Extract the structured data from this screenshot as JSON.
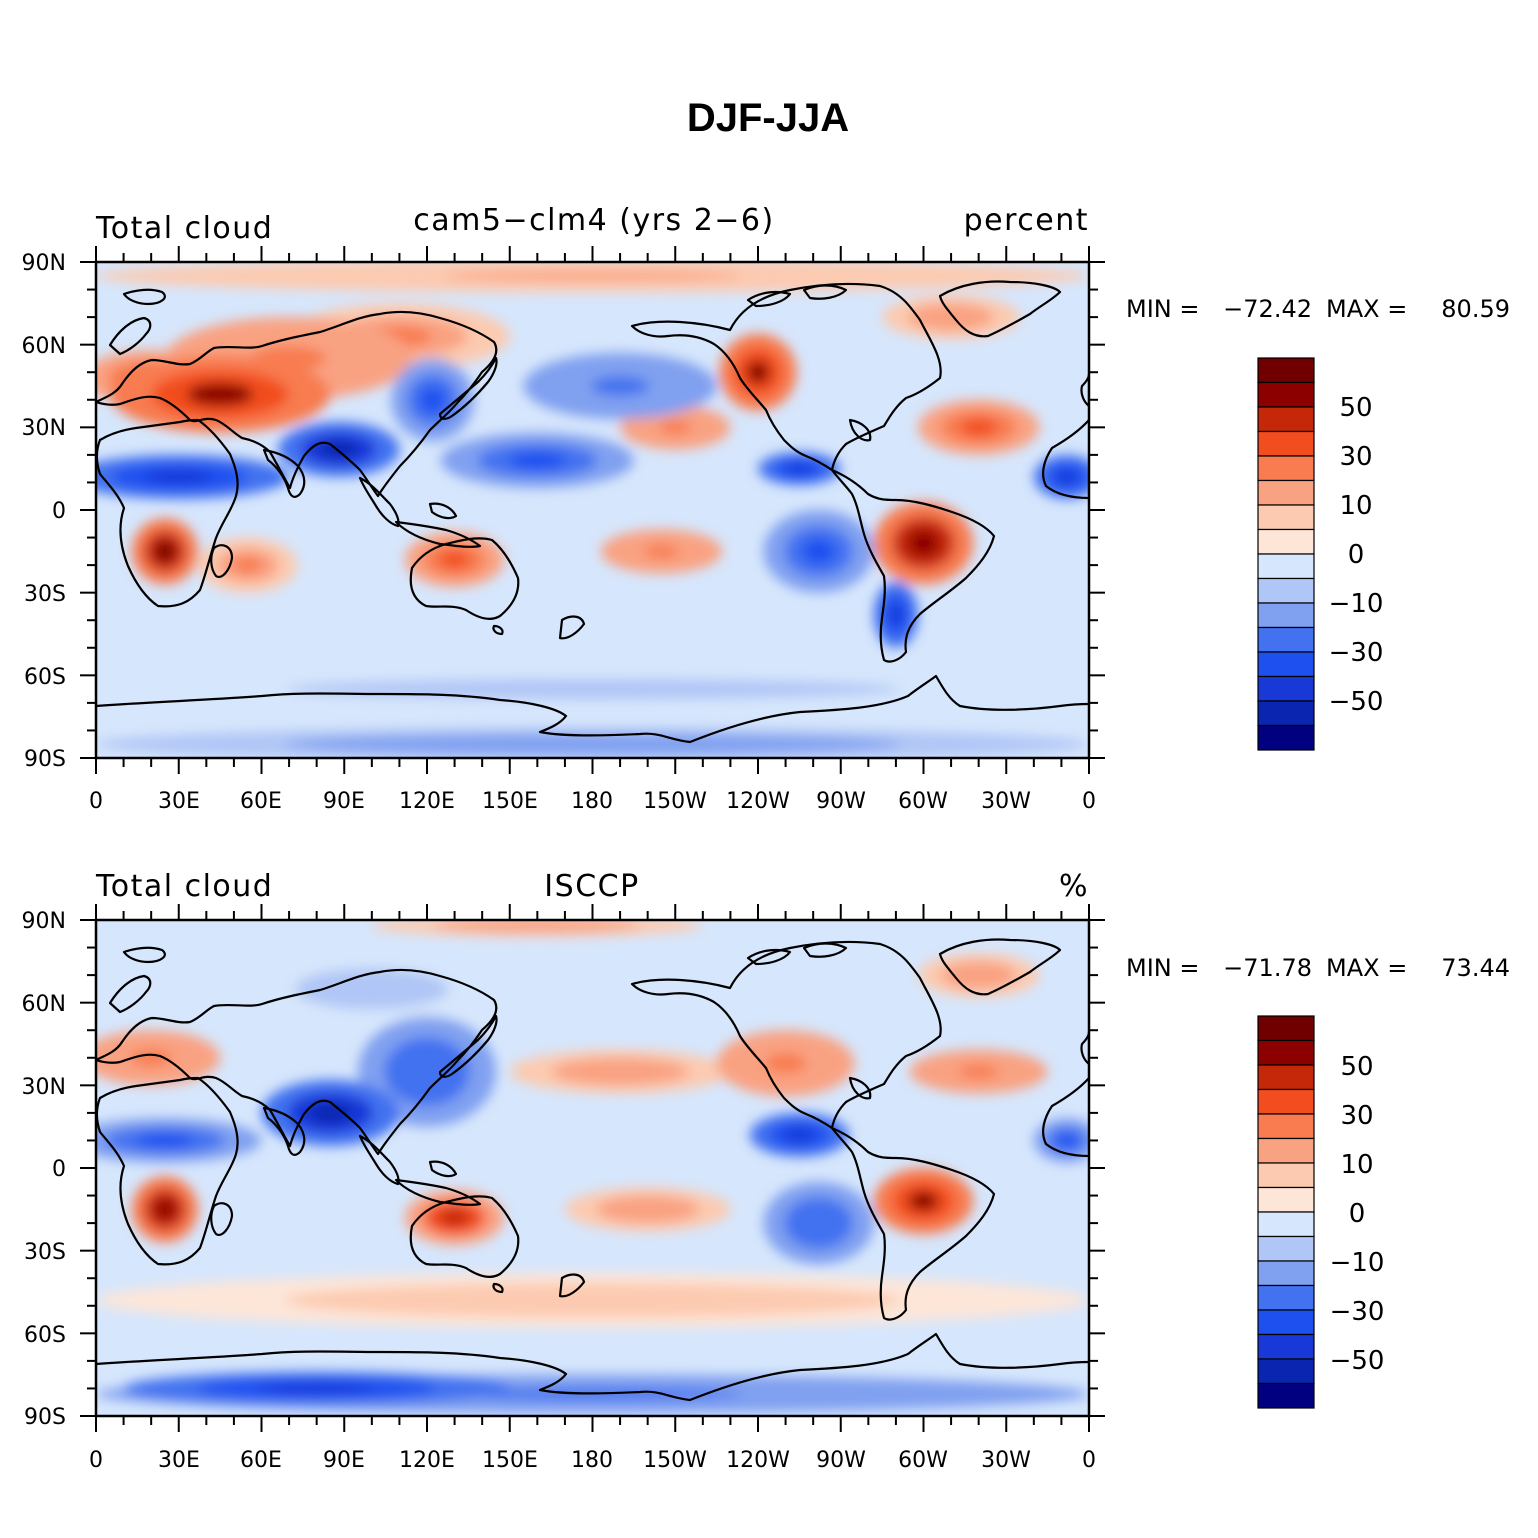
{
  "figure": {
    "title": "DJF-JJA"
  },
  "colors": {
    "levels": [
      -60,
      -50,
      -40,
      -30,
      -20,
      -10,
      -5,
      0,
      5,
      10,
      20,
      30,
      40,
      50,
      60
    ],
    "palette": [
      "#000080",
      "#0a26b0",
      "#1838d8",
      "#1e50f0",
      "#4272f0",
      "#80a0f0",
      "#b0c6f6",
      "#d6e6fc",
      "#fde6d8",
      "#fccab0",
      "#f9a282",
      "#f87c50",
      "#f24d1e",
      "#c42808",
      "#8c0000",
      "#700000"
    ]
  },
  "axes": {
    "x_ticks": [
      "0",
      "30E",
      "60E",
      "90E",
      "120E",
      "150E",
      "180",
      "150W",
      "120W",
      "90W",
      "60W",
      "30W",
      "0"
    ],
    "y_ticks": [
      "90N",
      "60N",
      "30N",
      "0",
      "30S",
      "60S",
      "90S"
    ]
  },
  "panels": [
    {
      "left_label": "Total cloud",
      "center_label": "cam5−clm4 (yrs 2−6)",
      "right_label": "percent",
      "min_label": "MIN =",
      "min_value": "−72.42",
      "max_label": "MAX =",
      "max_value": "80.59",
      "colorbar_labels": [
        "50",
        "30",
        "10",
        "0",
        "−10",
        "−30",
        "−50"
      ]
    },
    {
      "left_label": "Total cloud",
      "center_label": "ISCCP",
      "right_label": "%",
      "min_label": "MIN =",
      "min_value": "−71.78",
      "max_label": "MAX =",
      "max_value": "73.44",
      "colorbar_labels": [
        "50",
        "30",
        "10",
        "0",
        "−10",
        "−30",
        "−50"
      ]
    }
  ],
  "chart_data": [
    {
      "type": "heatmap",
      "title": "",
      "xlabel": "",
      "ylabel": "",
      "xlim": [
        0,
        360
      ],
      "ylim": [
        -90,
        90
      ],
      "units": "percent",
      "min": -72.42,
      "max": 80.59,
      "features": [
        {
          "lon": 45,
          "lat": 42,
          "rx": 40,
          "ry": 14,
          "value": 50
        },
        {
          "lon": 20,
          "lat": 48,
          "rx": 25,
          "ry": 10,
          "value": 35
        },
        {
          "lon": 70,
          "lat": 55,
          "rx": 45,
          "ry": 15,
          "value": 25
        },
        {
          "lon": 110,
          "lat": 63,
          "rx": 40,
          "ry": 12,
          "value": 20
        },
        {
          "lon": 25,
          "lat": -15,
          "rx": 12,
          "ry": 12,
          "value": 60
        },
        {
          "lon": 55,
          "lat": -20,
          "rx": 18,
          "ry": 10,
          "value": 20
        },
        {
          "lon": 130,
          "lat": -18,
          "rx": 18,
          "ry": 10,
          "value": 35
        },
        {
          "lon": 205,
          "lat": -15,
          "rx": 22,
          "ry": 8,
          "value": 25
        },
        {
          "lon": 300,
          "lat": -12,
          "rx": 18,
          "ry": 15,
          "value": 55
        },
        {
          "lon": 240,
          "lat": 50,
          "rx": 14,
          "ry": 14,
          "value": 50
        },
        {
          "lon": 210,
          "lat": 30,
          "rx": 20,
          "ry": 8,
          "value": 25
        },
        {
          "lon": 320,
          "lat": 30,
          "rx": 22,
          "ry": 10,
          "value": 30
        },
        {
          "lon": 310,
          "lat": 70,
          "rx": 25,
          "ry": 8,
          "value": 15
        },
        {
          "lon": 180,
          "lat": 85,
          "rx": 180,
          "ry": 6,
          "value": 12
        },
        {
          "lon": 30,
          "lat": 12,
          "rx": 40,
          "ry": 8,
          "value": -50
        },
        {
          "lon": 88,
          "lat": 22,
          "rx": 22,
          "ry": 10,
          "value": -55
        },
        {
          "lon": 122,
          "lat": 40,
          "rx": 15,
          "ry": 15,
          "value": -35
        },
        {
          "lon": 160,
          "lat": 18,
          "rx": 35,
          "ry": 10,
          "value": -40
        },
        {
          "lon": 190,
          "lat": 45,
          "rx": 35,
          "ry": 12,
          "value": -25
        },
        {
          "lon": 262,
          "lat": -15,
          "rx": 20,
          "ry": 15,
          "value": -35
        },
        {
          "lon": 255,
          "lat": 15,
          "rx": 15,
          "ry": 6,
          "value": -45
        },
        {
          "lon": 290,
          "lat": -38,
          "rx": 8,
          "ry": 12,
          "value": -45
        },
        {
          "lon": 352,
          "lat": 12,
          "rx": 12,
          "ry": 8,
          "value": -45
        },
        {
          "lon": 180,
          "lat": -65,
          "rx": 180,
          "ry": 6,
          "value": -10
        },
        {
          "lon": 180,
          "lat": -85,
          "rx": 180,
          "ry": 6,
          "value": -20
        }
      ]
    },
    {
      "type": "heatmap",
      "title": "",
      "xlabel": "",
      "ylabel": "",
      "xlim": [
        0,
        360
      ],
      "ylim": [
        -90,
        90
      ],
      "units": "%",
      "min": -71.78,
      "max": 73.44,
      "features": [
        {
          "lon": 25,
          "lat": -15,
          "rx": 12,
          "ry": 12,
          "value": 55
        },
        {
          "lon": 130,
          "lat": -18,
          "rx": 18,
          "ry": 10,
          "value": 40
        },
        {
          "lon": 300,
          "lat": -12,
          "rx": 18,
          "ry": 12,
          "value": 50
        },
        {
          "lon": 20,
          "lat": 40,
          "rx": 25,
          "ry": 10,
          "value": 25
        },
        {
          "lon": 250,
          "lat": 38,
          "rx": 25,
          "ry": 12,
          "value": 25
        },
        {
          "lon": 320,
          "lat": 35,
          "rx": 25,
          "ry": 8,
          "value": 25
        },
        {
          "lon": 190,
          "lat": 35,
          "rx": 40,
          "ry": 8,
          "value": 15
        },
        {
          "lon": 200,
          "lat": -15,
          "rx": 30,
          "ry": 8,
          "value": 15
        },
        {
          "lon": 180,
          "lat": -48,
          "rx": 180,
          "ry": 10,
          "value": 8
        },
        {
          "lon": 160,
          "lat": 88,
          "rx": 60,
          "ry": 4,
          "value": 15
        },
        {
          "lon": 320,
          "lat": 70,
          "rx": 22,
          "ry": 8,
          "value": 15
        },
        {
          "lon": 85,
          "lat": 20,
          "rx": 25,
          "ry": 12,
          "value": -55
        },
        {
          "lon": 25,
          "lat": 10,
          "rx": 35,
          "ry": 8,
          "value": -40
        },
        {
          "lon": 120,
          "lat": 35,
          "rx": 25,
          "ry": 20,
          "value": -30
        },
        {
          "lon": 255,
          "lat": 12,
          "rx": 18,
          "ry": 8,
          "value": -45
        },
        {
          "lon": 262,
          "lat": -20,
          "rx": 20,
          "ry": 15,
          "value": -30
        },
        {
          "lon": 352,
          "lat": 10,
          "rx": 12,
          "ry": 8,
          "value": -40
        },
        {
          "lon": 80,
          "lat": -80,
          "rx": 70,
          "ry": 6,
          "value": -45
        },
        {
          "lon": 180,
          "lat": -82,
          "rx": 180,
          "ry": 7,
          "value": -25
        },
        {
          "lon": 100,
          "lat": 65,
          "rx": 45,
          "ry": 12,
          "value": -10
        }
      ]
    }
  ]
}
